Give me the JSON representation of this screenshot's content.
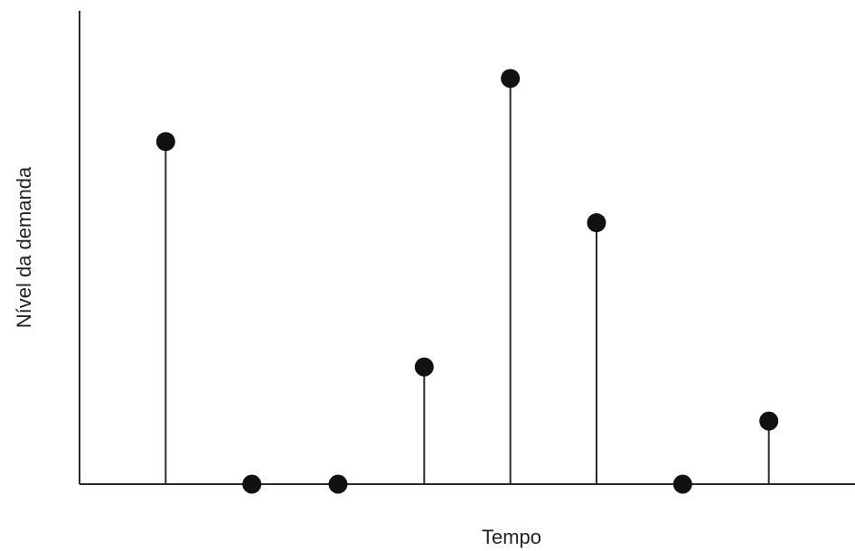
{
  "chart_data": {
    "type": "scatter",
    "style": "stem",
    "title": "",
    "xlabel": "Tempo",
    "ylabel": "Nível da demanda",
    "x": [
      1,
      2,
      3,
      4,
      5,
      6,
      7,
      8
    ],
    "values": [
      7.6,
      0,
      0,
      2.6,
      9.0,
      5.8,
      0,
      1.4
    ],
    "xlim": [
      0,
      9
    ],
    "ylim": [
      0,
      10.5
    ],
    "grid": false,
    "show_ticks": false,
    "colors": {
      "axis": "#2a2a2a",
      "marker": "#111111"
    }
  }
}
